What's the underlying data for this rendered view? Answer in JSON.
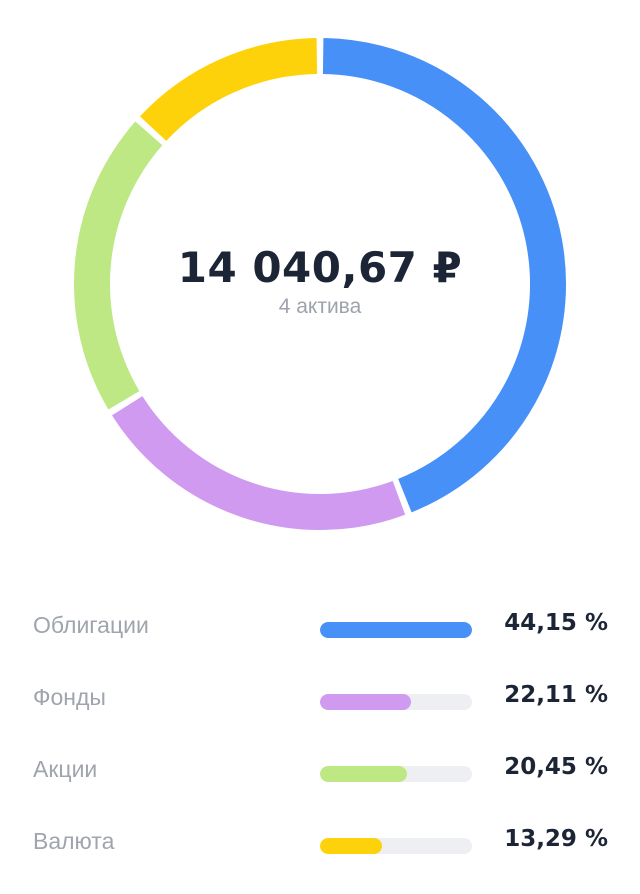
{
  "summary": {
    "total": "14 040,67 ₽",
    "assets_count": "4 актива"
  },
  "chart_data": {
    "type": "pie",
    "categories": [
      "Облигации",
      "Фонды",
      "Акции",
      "Валюта"
    ],
    "values": [
      44.15,
      22.11,
      20.45,
      13.29
    ],
    "value_labels": [
      "44,15 %",
      "22,11 %",
      "20,45 %",
      "13,29 %"
    ],
    "colors": [
      "#4790f7",
      "#cf9af0",
      "#bde884",
      "#fed20a"
    ],
    "title": "",
    "legend": "bottom"
  },
  "legend": {
    "items": [
      {
        "label": "Облигации",
        "percent": "44,15 %",
        "share": 1.0,
        "color": "#4790f7"
      },
      {
        "label": "Фонды",
        "percent": "22,11 %",
        "share": 0.6,
        "color": "#cf9af0"
      },
      {
        "label": "Акции",
        "percent": "20,45 %",
        "share": 0.57,
        "color": "#bde884"
      },
      {
        "label": "Валюта",
        "percent": "13,29 %",
        "share": 0.41,
        "color": "#fed20a"
      }
    ],
    "track_color": "#eeeff2"
  }
}
